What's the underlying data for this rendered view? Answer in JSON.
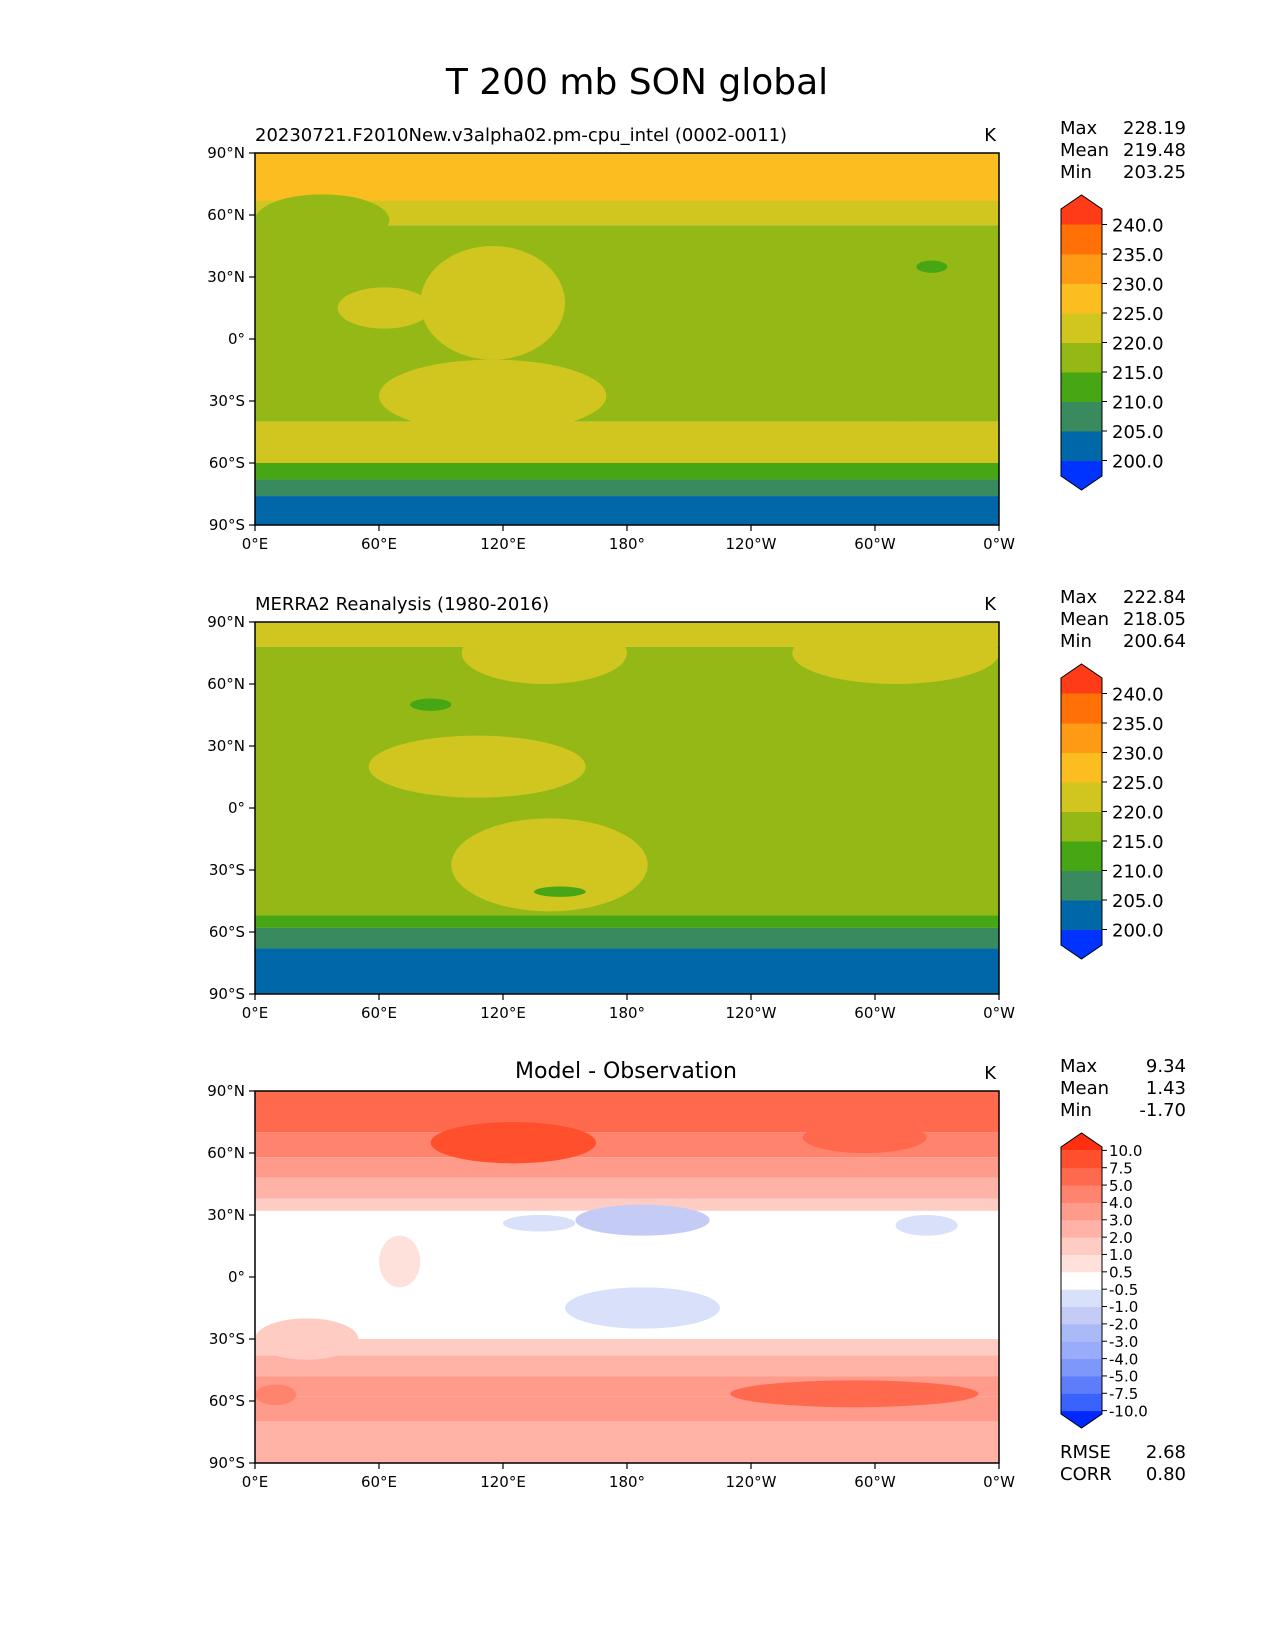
{
  "figure_title": "T 200 mb SON global",
  "colors": {
    "abs_levels": [
      "#0033ff",
      "#0068a8",
      "#398a5e",
      "#47a614",
      "#94b916",
      "#d1c620",
      "#fcbd21",
      "#ff9a15",
      "#ff7006",
      "#ff3b18"
    ],
    "diff_levels": [
      "#0028ff",
      "#3a62ff",
      "#5e7dfa",
      "#7d97fb",
      "#99acfb",
      "#aabaf7",
      "#c4ccf6",
      "#d8e0fa",
      "#ffffff",
      "#ffe1dc",
      "#ffccc3",
      "#ffb3a7",
      "#ff9b8a",
      "#ff836d",
      "#ff6a4f",
      "#ff4f2c",
      "#ff2f10"
    ],
    "frame": "#000000"
  },
  "chart_data": [
    {
      "type": "heatmap",
      "panel": "model",
      "title": "20230721.F2010New.v3alpha02.pm-cpu_intel (0002-0011)",
      "units": "K",
      "stats": {
        "max_label": "Max",
        "max": "228.19",
        "mean_label": "Mean",
        "mean": "219.48",
        "min_label": "Min",
        "min": "203.25"
      },
      "xticks": [
        "0°E",
        "60°E",
        "120°E",
        "180°",
        "120°W",
        "60°W",
        "0°W"
      ],
      "yticks": [
        "90°N",
        "60°N",
        "30°N",
        "0°",
        "30°S",
        "60°S",
        "90°S"
      ],
      "xlim": [
        0,
        360
      ],
      "ylim": [
        -90,
        90
      ],
      "colorbar": {
        "levels": [
          200,
          205,
          210,
          215,
          220,
          225,
          230,
          235,
          240
        ],
        "labels": [
          "240.0",
          "235.0",
          "230.0",
          "225.0",
          "220.0",
          "215.0",
          "210.0",
          "205.0",
          "200.0"
        ],
        "extend": "both"
      },
      "zonal_bands": [
        {
          "lat": [
            90,
            67
          ],
          "value": 226
        },
        {
          "lat": [
            67,
            55
          ],
          "value": 224
        },
        {
          "lat": [
            55,
            -40
          ],
          "value": 217
        },
        {
          "lat": [
            -40,
            -60
          ],
          "value": 222
        },
        {
          "lat": [
            -60,
            -68
          ],
          "value": 213
        },
        {
          "lat": [
            -68,
            -76
          ],
          "value": 208
        },
        {
          "lat": [
            -76,
            -90
          ],
          "value": 204
        }
      ],
      "regions": [
        {
          "lon": [
            110,
            215
          ],
          "lat": [
            70,
            90
          ],
          "value": 226
        },
        {
          "lon": [
            80,
            150
          ],
          "lat": [
            -10,
            45
          ],
          "value": 222
        },
        {
          "lon": [
            60,
            170
          ],
          "lat": [
            -45,
            -10
          ],
          "value": 222
        },
        {
          "lon": [
            40,
            85
          ],
          "lat": [
            5,
            25
          ],
          "value": 222
        },
        {
          "lon": [
            0,
            65
          ],
          "lat": [
            45,
            70
          ],
          "value": 217
        },
        {
          "lon": [
            320,
            335
          ],
          "lat": [
            32,
            38
          ],
          "value": 213
        },
        {
          "lon": [
            290,
            340
          ],
          "lat": [
            -55,
            -40
          ],
          "value": 222
        }
      ]
    },
    {
      "type": "heatmap",
      "panel": "observation",
      "title": "MERRA2 Reanalysis (1980-2016)",
      "units": "K",
      "stats": {
        "max_label": "Max",
        "max": "222.84",
        "mean_label": "Mean",
        "mean": "218.05",
        "min_label": "Min",
        "min": "200.64"
      },
      "xticks": [
        "0°E",
        "60°E",
        "120°E",
        "180°",
        "120°W",
        "60°W",
        "0°W"
      ],
      "yticks": [
        "90°N",
        "60°N",
        "30°N",
        "0°",
        "30°S",
        "60°S",
        "90°S"
      ],
      "xlim": [
        0,
        360
      ],
      "ylim": [
        -90,
        90
      ],
      "colorbar": {
        "levels": [
          200,
          205,
          210,
          215,
          220,
          225,
          230,
          235,
          240
        ],
        "labels": [
          "240.0",
          "235.0",
          "230.0",
          "225.0",
          "220.0",
          "215.0",
          "210.0",
          "205.0",
          "200.0"
        ],
        "extend": "both"
      },
      "zonal_bands": [
        {
          "lat": [
            90,
            78
          ],
          "value": 222
        },
        {
          "lat": [
            78,
            -52
          ],
          "value": 217
        },
        {
          "lat": [
            -52,
            -58
          ],
          "value": 213
        },
        {
          "lat": [
            -58,
            -68
          ],
          "value": 208
        },
        {
          "lat": [
            -68,
            -90
          ],
          "value": 204
        }
      ],
      "regions": [
        {
          "lon": [
            100,
            180
          ],
          "lat": [
            60,
            90
          ],
          "value": 222
        },
        {
          "lon": [
            260,
            360
          ],
          "lat": [
            60,
            90
          ],
          "value": 222
        },
        {
          "lon": [
            55,
            160
          ],
          "lat": [
            5,
            35
          ],
          "value": 222
        },
        {
          "lon": [
            95,
            190
          ],
          "lat": [
            -50,
            -5
          ],
          "value": 222
        },
        {
          "lon": [
            75,
            95
          ],
          "lat": [
            47,
            53
          ],
          "value": 213
        },
        {
          "lon": [
            135,
            160
          ],
          "lat": [
            -43,
            -38
          ],
          "value": 213
        }
      ]
    },
    {
      "type": "heatmap",
      "panel": "difference",
      "title": "Model - Observation",
      "units": "K",
      "stats": {
        "max_label": "Max",
        "max": "9.34",
        "mean_label": "Mean",
        "mean": "1.43",
        "min_label": "Min",
        "min": "-1.70"
      },
      "metrics": {
        "rmse_label": "RMSE",
        "rmse": "2.68",
        "corr_label": "CORR",
        "corr": "0.80"
      },
      "xticks": [
        "0°E",
        "60°E",
        "120°E",
        "180°",
        "120°W",
        "60°W",
        "0°W"
      ],
      "yticks": [
        "90°N",
        "60°N",
        "30°N",
        "0°",
        "30°S",
        "60°S",
        "90°S"
      ],
      "xlim": [
        0,
        360
      ],
      "ylim": [
        -90,
        90
      ],
      "colorbar": {
        "levels": [
          -10,
          -7.5,
          -5,
          -4,
          -3,
          -2,
          -1,
          -0.5,
          0.5,
          1,
          2,
          3,
          4,
          5,
          7.5,
          10
        ],
        "labels": [
          "10.0",
          "7.5",
          "5.0",
          "4.0",
          "3.0",
          "2.0",
          "1.0",
          "0.5",
          "-0.5",
          "-1.0",
          "-2.0",
          "-3.0",
          "-4.0",
          "-5.0",
          "-7.5",
          "-10.0"
        ],
        "extend": "both"
      },
      "zonal_bands": [
        {
          "lat": [
            90,
            70
          ],
          "value": 5.5
        },
        {
          "lat": [
            70,
            58
          ],
          "value": 4.5
        },
        {
          "lat": [
            58,
            48
          ],
          "value": 3.5
        },
        {
          "lat": [
            48,
            38
          ],
          "value": 2.5
        },
        {
          "lat": [
            38,
            32
          ],
          "value": 1.5
        },
        {
          "lat": [
            32,
            -30
          ],
          "value": 0
        },
        {
          "lat": [
            -30,
            -38
          ],
          "value": 1.5
        },
        {
          "lat": [
            -38,
            -48
          ],
          "value": 2.5
        },
        {
          "lat": [
            -48,
            -58
          ],
          "value": 3.5
        },
        {
          "lat": [
            -58,
            -70
          ],
          "value": 3.5
        },
        {
          "lat": [
            -70,
            -90
          ],
          "value": 2.5
        }
      ],
      "regions": [
        {
          "lon": [
            85,
            165
          ],
          "lat": [
            55,
            75
          ],
          "value": 8
        },
        {
          "lon": [
            265,
            325
          ],
          "lat": [
            60,
            75
          ],
          "value": 6
        },
        {
          "lon": [
            0,
            50
          ],
          "lat": [
            -40,
            -20
          ],
          "value": 1.5
        },
        {
          "lon": [
            60,
            80
          ],
          "lat": [
            -5,
            20
          ],
          "value": 0.8
        },
        {
          "lon": [
            0,
            20
          ],
          "lat": [
            -62,
            -52
          ],
          "value": 4.5
        },
        {
          "lon": [
            155,
            220
          ],
          "lat": [
            20,
            35
          ],
          "value": -1.5
        },
        {
          "lon": [
            120,
            155
          ],
          "lat": [
            22,
            30
          ],
          "value": -0.8
        },
        {
          "lon": [
            310,
            340
          ],
          "lat": [
            20,
            30
          ],
          "value": -0.8
        },
        {
          "lon": [
            150,
            225
          ],
          "lat": [
            -25,
            -5
          ],
          "value": -0.8
        },
        {
          "lon": [
            230,
            350
          ],
          "lat": [
            -63,
            -50
          ],
          "value": 5.5
        }
      ]
    }
  ]
}
